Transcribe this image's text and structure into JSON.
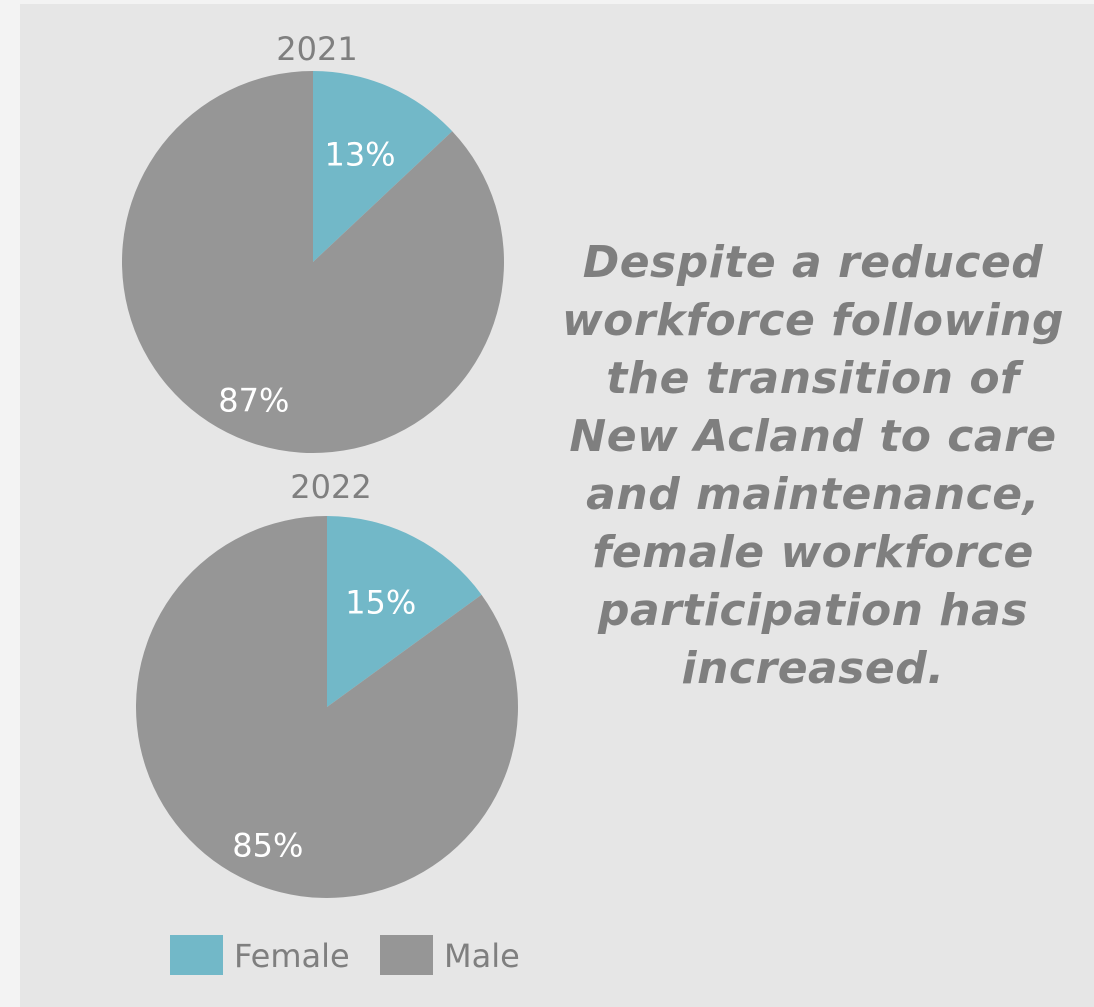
{
  "colors": {
    "female": "#72b8c8",
    "male": "#969696",
    "title_text": "#7f7f7f",
    "label_text": "#ffffff"
  },
  "callout": {
    "text": "Despite a reduced workforce following the transition of New Acland to care and maintenance, female workforce participation has increased."
  },
  "chart_data": [
    {
      "type": "pie",
      "title": "2021",
      "series": [
        {
          "name": "Female",
          "value": 13,
          "label": "13%"
        },
        {
          "name": "Male",
          "value": 87,
          "label": "87%"
        }
      ]
    },
    {
      "type": "pie",
      "title": "2022",
      "series": [
        {
          "name": "Female",
          "value": 15,
          "label": "15%"
        },
        {
          "name": "Male",
          "value": 85,
          "label": "85%"
        }
      ]
    }
  ],
  "legend": {
    "items": [
      {
        "name": "Female",
        "color": "#72b8c8"
      },
      {
        "name": "Male",
        "color": "#969696"
      }
    ]
  }
}
